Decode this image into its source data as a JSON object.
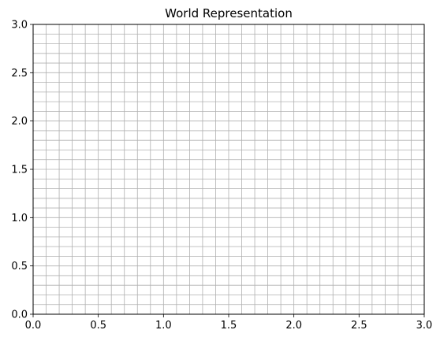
{
  "chart_data": {
    "type": "scatter",
    "title": "World Representation",
    "xlabel": "",
    "ylabel": "",
    "xlim": [
      0,
      3
    ],
    "ylim": [
      0,
      3
    ],
    "x_ticks": [
      0,
      0.5,
      1,
      1.5,
      2,
      2.5,
      3
    ],
    "x_tick_labels": [
      "0.0",
      "0.5",
      "1.0",
      "1.5",
      "2.0",
      "2.5",
      "3.0"
    ],
    "y_ticks": [
      0,
      0.5,
      1,
      1.5,
      2,
      2.5,
      3
    ],
    "y_tick_labels": [
      "0.0",
      "0.5",
      "1.0",
      "1.5",
      "2.0",
      "2.5",
      "3.0"
    ],
    "grid": true,
    "grid_step": 0.1,
    "grid_color": "#b0b0b0",
    "legend": "none",
    "series": []
  }
}
